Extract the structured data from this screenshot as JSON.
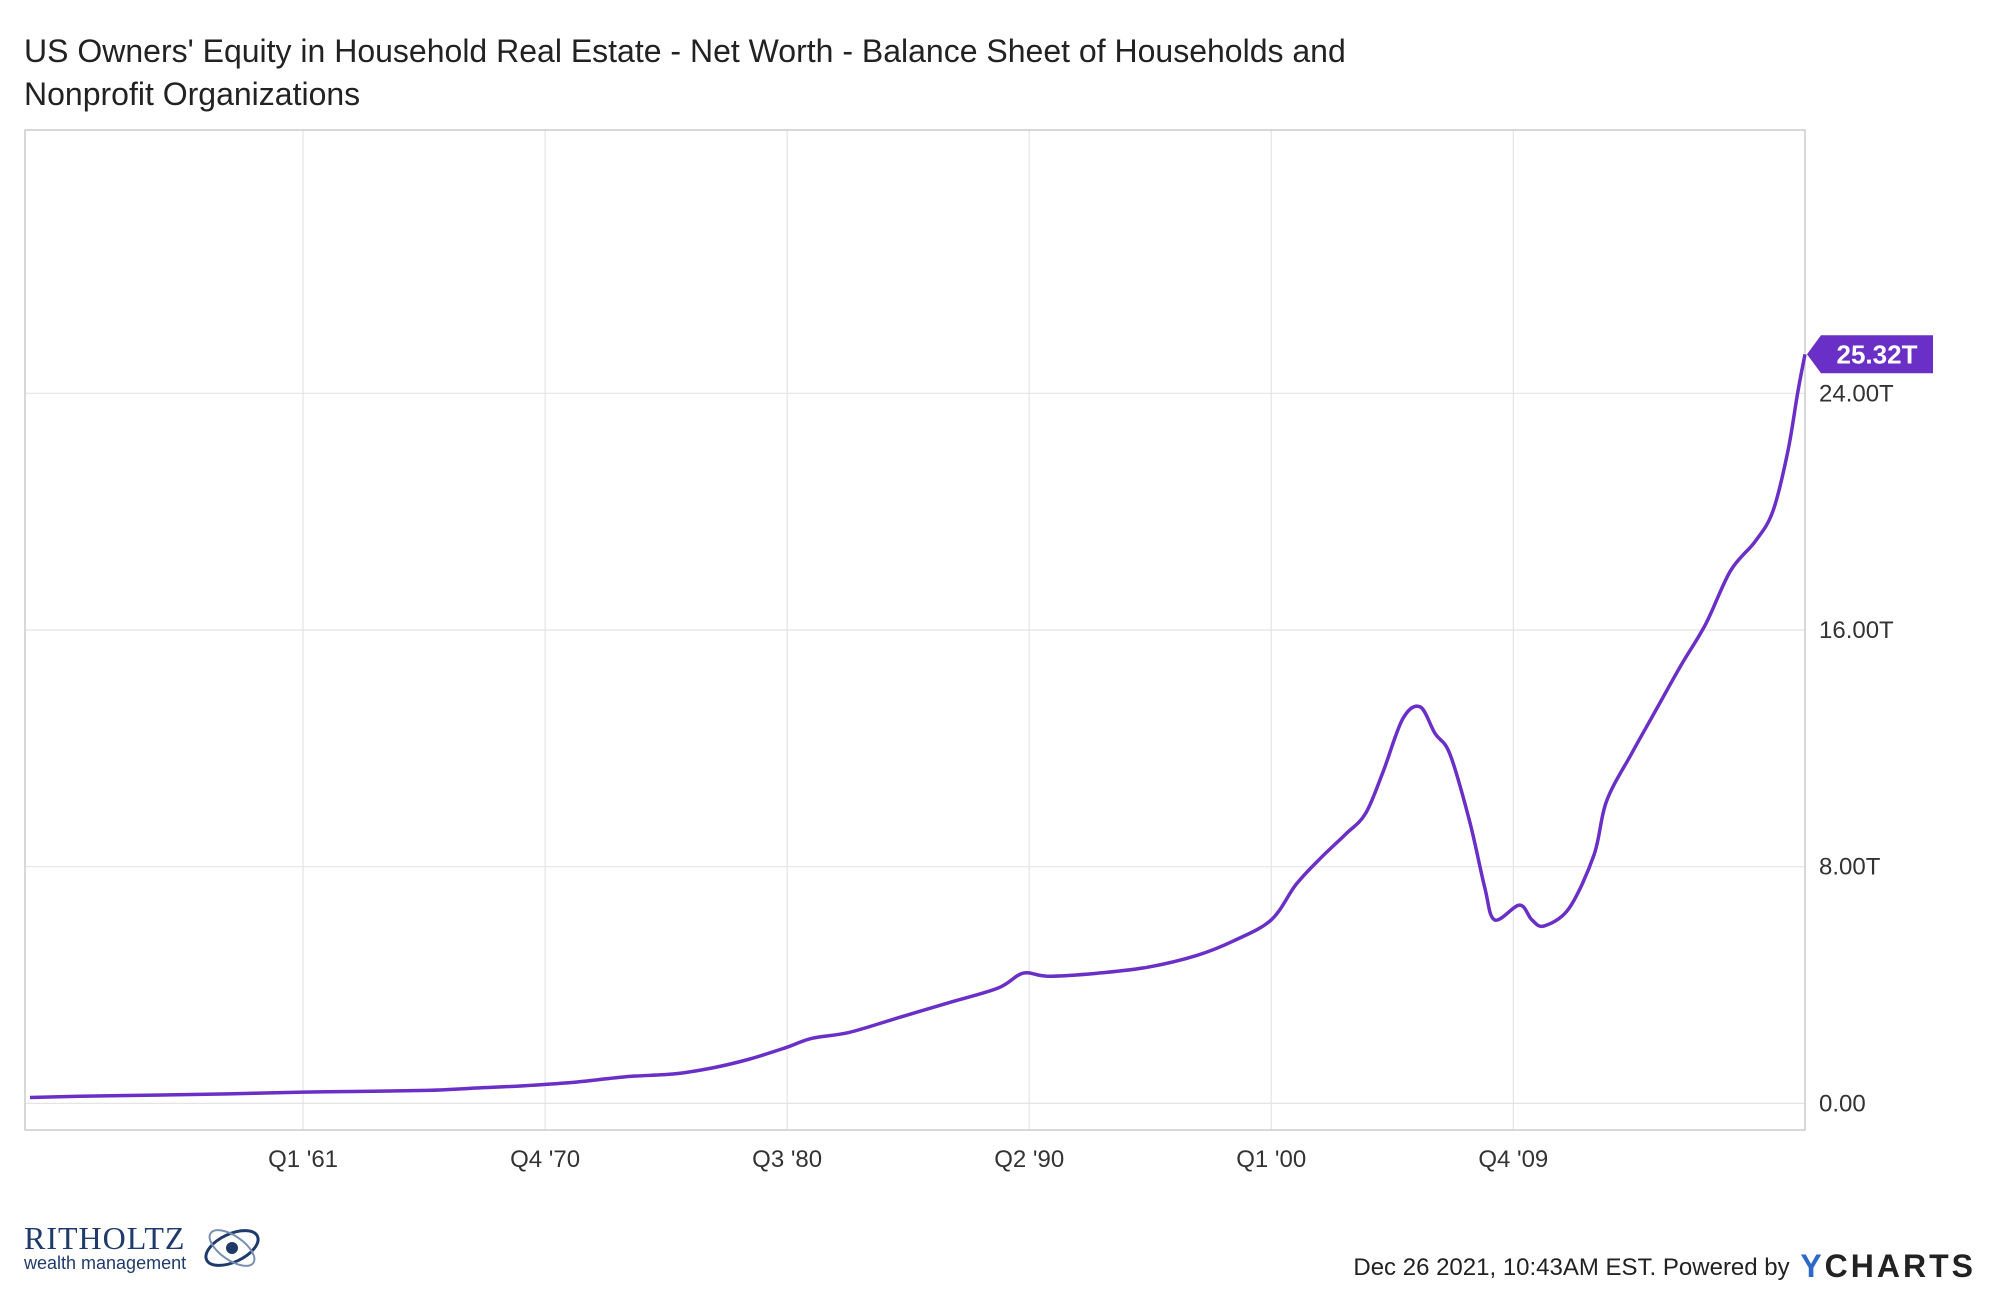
{
  "title_lines": [
    "US Owners' Equity in Household Real Estate - Net Worth - Balance Sheet of Households and",
    "Nonprofit Organizations"
  ],
  "colors": {
    "line": "#6a2fc6",
    "grid": "#e4e4e4",
    "axis": "#cccccc"
  },
  "footer": {
    "timestamp": "Dec 26 2021, 10:43AM EST.",
    "powered_by": "Powered by",
    "brand_y": "Y",
    "brand_rest": "CHARTS"
  },
  "logo": {
    "name": "RITHOLTZ",
    "subtitle": "wealth management"
  },
  "chart_data": {
    "type": "line",
    "title": "US Owners' Equity in Household Real Estate - Net Worth - Balance Sheet of Households and Nonprofit Organizations",
    "x_ticks": [
      "Q1 '61",
      "Q4 '70",
      "Q3 '80",
      "Q2 '90",
      "Q1 '00",
      "Q4 '09"
    ],
    "x_tick_years": [
      1961.0,
      1970.75,
      1980.5,
      1990.25,
      2000.0,
      2009.75
    ],
    "y_ticks": [
      "0.00",
      "8.00T",
      "16.00T",
      "24.00T"
    ],
    "y_tick_values": [
      0,
      8,
      16,
      24
    ],
    "xlim": [
      1949.8,
      2021.5
    ],
    "ylim": [
      -0.9,
      32.9
    ],
    "y_unit": "trillions USD",
    "last_value_label": "25.32T",
    "series": [
      {
        "values": [
          [
            1950.0,
            0.2
          ],
          [
            1952.0,
            0.24
          ],
          [
            1955.0,
            0.28
          ],
          [
            1958.0,
            0.32
          ],
          [
            1961.0,
            0.38
          ],
          [
            1963.0,
            0.4
          ],
          [
            1966.0,
            0.44
          ],
          [
            1968.0,
            0.52
          ],
          [
            1970.0,
            0.6
          ],
          [
            1972.0,
            0.72
          ],
          [
            1974.0,
            0.9
          ],
          [
            1976.0,
            1.0
          ],
          [
            1977.5,
            1.2
          ],
          [
            1979.0,
            1.5
          ],
          [
            1980.5,
            1.9
          ],
          [
            1981.5,
            2.2
          ],
          [
            1983.0,
            2.4
          ],
          [
            1985.0,
            2.9
          ],
          [
            1987.0,
            3.4
          ],
          [
            1989.0,
            3.9
          ],
          [
            1990.0,
            4.4
          ],
          [
            1991.0,
            4.3
          ],
          [
            1993.0,
            4.4
          ],
          [
            1995.0,
            4.6
          ],
          [
            1997.0,
            5.0
          ],
          [
            1998.5,
            5.5
          ],
          [
            2000.0,
            6.2
          ],
          [
            2001.0,
            7.4
          ],
          [
            2002.0,
            8.3
          ],
          [
            2003.0,
            9.1
          ],
          [
            2003.8,
            9.8
          ],
          [
            2004.5,
            11.2
          ],
          [
            2005.3,
            13.0
          ],
          [
            2006.0,
            13.4
          ],
          [
            2006.6,
            12.5
          ],
          [
            2007.2,
            11.8
          ],
          [
            2008.0,
            9.5
          ],
          [
            2008.6,
            7.3
          ],
          [
            2009.0,
            6.2
          ],
          [
            2010.0,
            6.7
          ],
          [
            2010.5,
            6.2
          ],
          [
            2011.0,
            6.0
          ],
          [
            2012.0,
            6.6
          ],
          [
            2013.0,
            8.4
          ],
          [
            2013.5,
            10.2
          ],
          [
            2014.5,
            11.8
          ],
          [
            2015.5,
            13.3
          ],
          [
            2016.5,
            14.8
          ],
          [
            2017.5,
            16.2
          ],
          [
            2018.5,
            18.0
          ],
          [
            2019.5,
            19.0
          ],
          [
            2020.2,
            20.0
          ],
          [
            2020.8,
            22.0
          ],
          [
            2021.2,
            24.0
          ],
          [
            2021.5,
            25.32
          ]
        ]
      }
    ],
    "grid": true,
    "legend": "none"
  }
}
